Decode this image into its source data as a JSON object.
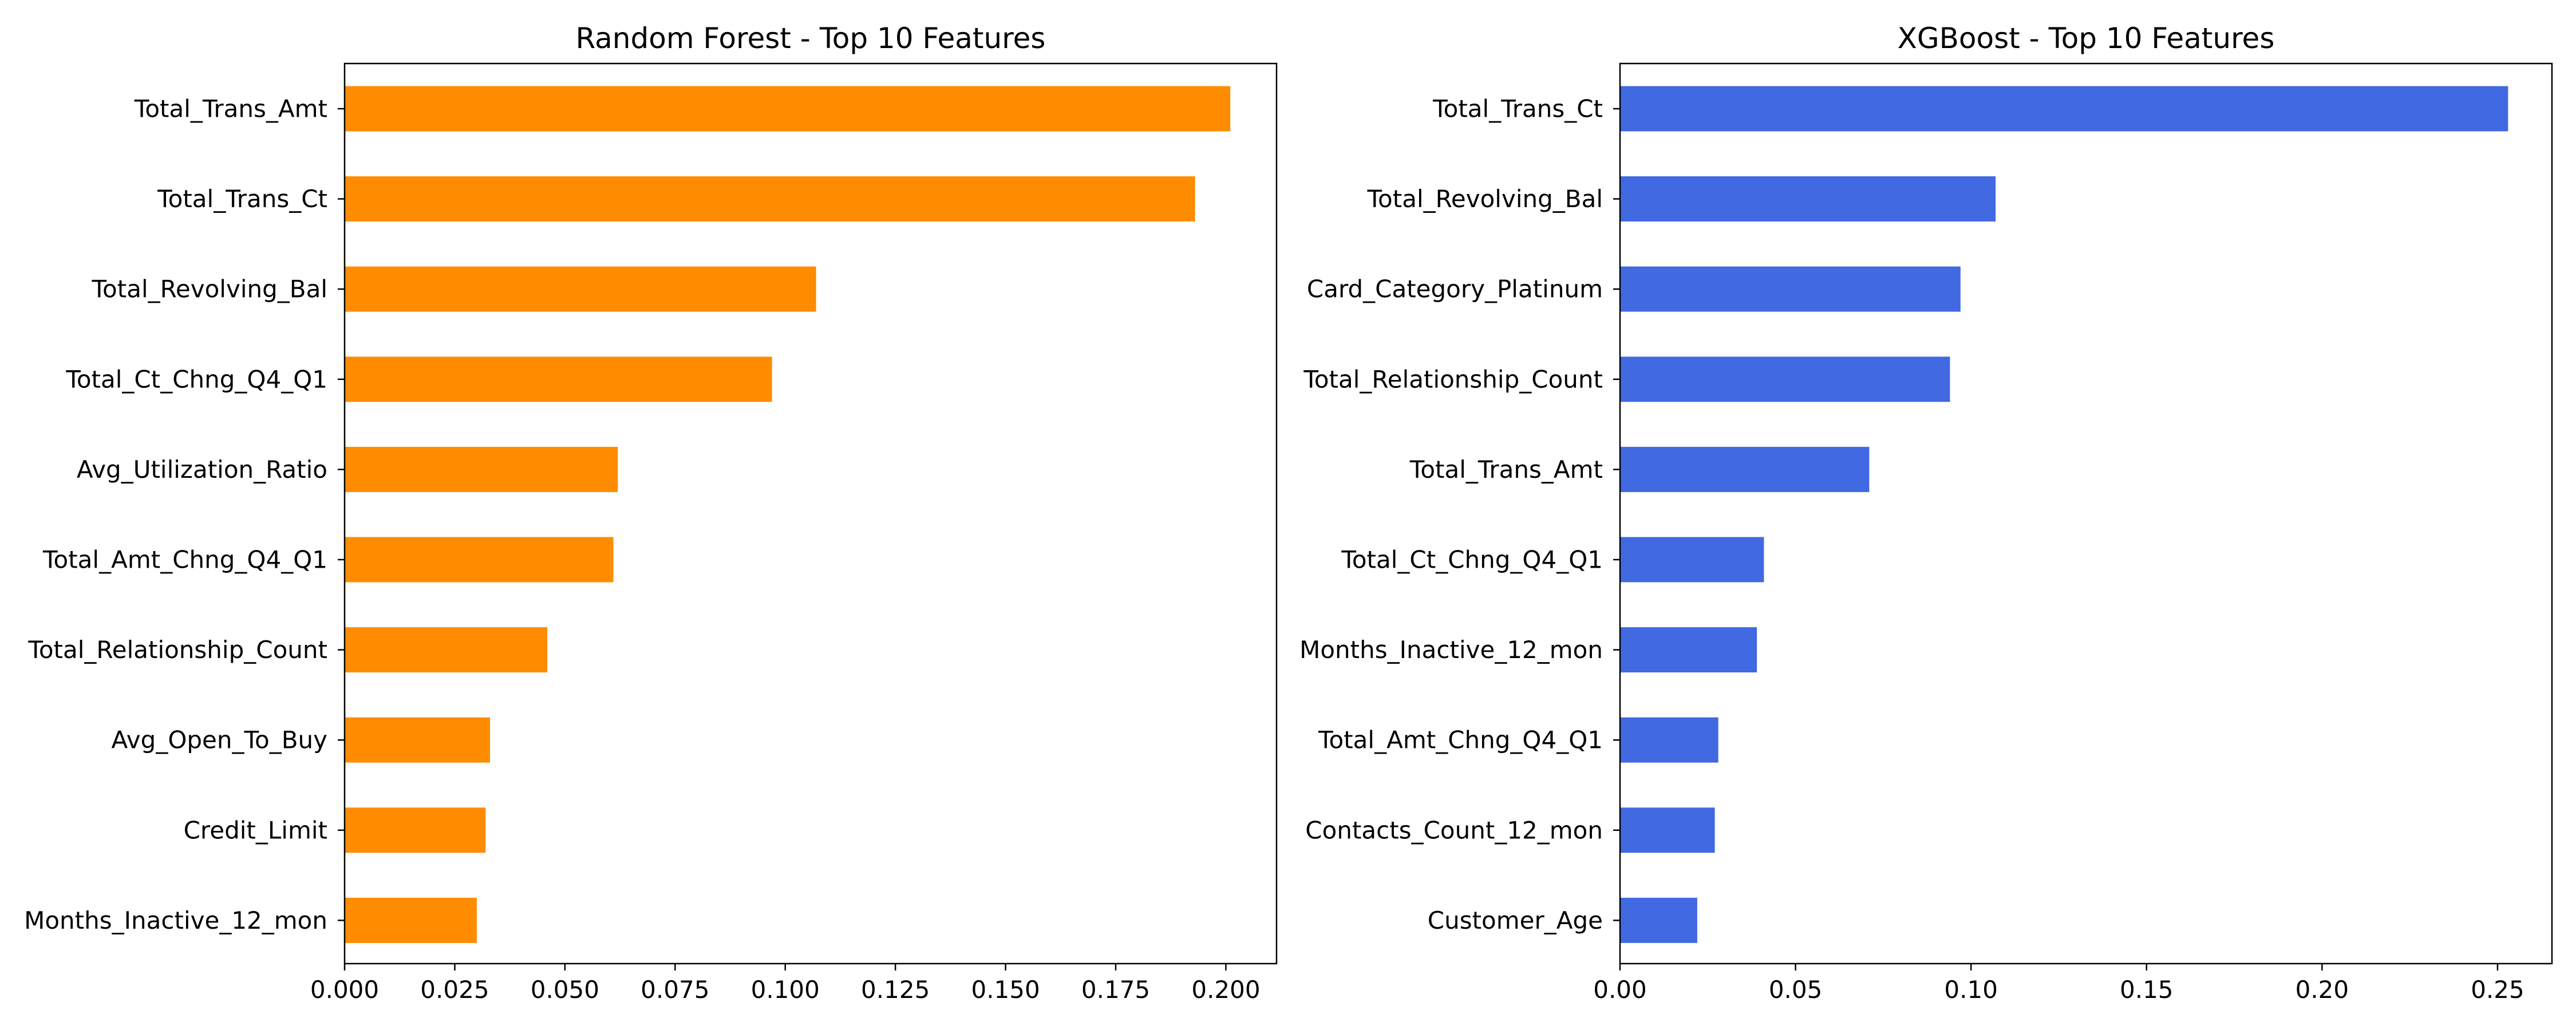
{
  "chart_data": [
    {
      "type": "bar",
      "orientation": "horizontal",
      "title": "Random Forest - Top 10 Features",
      "xlabel": "",
      "ylabel": "",
      "color": "#FF8C00",
      "xlim": [
        0,
        0.2115
      ],
      "xticks": [
        "0.000",
        "0.025",
        "0.050",
        "0.075",
        "0.100",
        "0.125",
        "0.150",
        "0.175",
        "0.200"
      ],
      "xtick_values": [
        0,
        0.025,
        0.05,
        0.075,
        0.1,
        0.125,
        0.15,
        0.175,
        0.2
      ],
      "categories": [
        "Total_Trans_Amt",
        "Total_Trans_Ct",
        "Total_Revolving_Bal",
        "Total_Ct_Chng_Q4_Q1",
        "Avg_Utilization_Ratio",
        "Total_Amt_Chng_Q4_Q1",
        "Total_Relationship_Count",
        "Avg_Open_To_Buy",
        "Credit_Limit",
        "Months_Inactive_12_mon"
      ],
      "values": [
        0.201,
        0.193,
        0.107,
        0.097,
        0.062,
        0.061,
        0.046,
        0.033,
        0.032,
        0.03
      ],
      "grid": false
    },
    {
      "type": "bar",
      "orientation": "horizontal",
      "title": "XGBoost - Top 10 Features",
      "xlabel": "",
      "ylabel": "",
      "color": "#4169E1",
      "xlim": [
        0,
        0.2655
      ],
      "xticks": [
        "0.00",
        "0.05",
        "0.10",
        "0.15",
        "0.20",
        "0.25"
      ],
      "xtick_values": [
        0,
        0.05,
        0.1,
        0.15,
        0.2,
        0.25
      ],
      "categories": [
        "Total_Trans_Ct",
        "Total_Revolving_Bal",
        "Card_Category_Platinum",
        "Total_Relationship_Count",
        "Total_Trans_Amt",
        "Total_Ct_Chng_Q4_Q1",
        "Months_Inactive_12_mon",
        "Total_Amt_Chng_Q4_Q1",
        "Contacts_Count_12_mon",
        "Customer_Age"
      ],
      "values": [
        0.253,
        0.107,
        0.097,
        0.094,
        0.071,
        0.041,
        0.039,
        0.028,
        0.027,
        0.022
      ],
      "grid": false
    }
  ]
}
